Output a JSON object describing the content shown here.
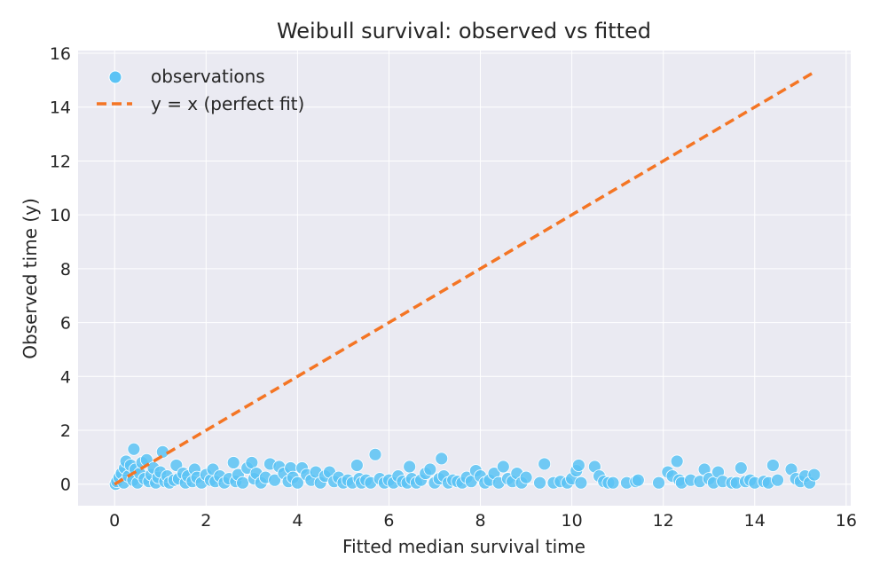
{
  "chart_data": {
    "type": "scatter",
    "title": "Weibull survival: observed vs fitted",
    "xlabel": "Fitted median survival time",
    "ylabel": "Observed time (y)",
    "xlim": [
      -0.8,
      16.1
    ],
    "ylim": [
      -0.8,
      16.1
    ],
    "xticks": [
      0,
      2,
      4,
      6,
      8,
      10,
      12,
      14,
      16
    ],
    "yticks": [
      0,
      2,
      4,
      6,
      8,
      10,
      12,
      14,
      16
    ],
    "grid": true,
    "legend_position": "top-left",
    "colors": {
      "points": "#5bc3f5",
      "line": "#f47524",
      "background": "#eaeaf2"
    },
    "series": [
      {
        "name": "observations",
        "kind": "scatter",
        "points": [
          [
            0.02,
            0.0
          ],
          [
            0.05,
            0.1
          ],
          [
            0.1,
            0.25
          ],
          [
            0.15,
            0.4
          ],
          [
            0.2,
            0.05
          ],
          [
            0.22,
            0.6
          ],
          [
            0.25,
            0.85
          ],
          [
            0.3,
            0.3
          ],
          [
            0.35,
            0.7
          ],
          [
            0.4,
            0.15
          ],
          [
            0.42,
            1.3
          ],
          [
            0.45,
            0.55
          ],
          [
            0.5,
            0.05
          ],
          [
            0.55,
            0.4
          ],
          [
            0.6,
            0.8
          ],
          [
            0.65,
            0.2
          ],
          [
            0.7,
            0.9
          ],
          [
            0.75,
            0.1
          ],
          [
            0.8,
            0.35
          ],
          [
            0.85,
            0.6
          ],
          [
            0.9,
            0.05
          ],
          [
            0.95,
            0.25
          ],
          [
            1.0,
            0.45
          ],
          [
            1.05,
            1.2
          ],
          [
            1.1,
            0.1
          ],
          [
            1.15,
            0.3
          ],
          [
            1.2,
            0.05
          ],
          [
            1.3,
            0.15
          ],
          [
            1.35,
            0.7
          ],
          [
            1.4,
            0.2
          ],
          [
            1.5,
            0.4
          ],
          [
            1.55,
            0.05
          ],
          [
            1.6,
            0.3
          ],
          [
            1.7,
            0.1
          ],
          [
            1.75,
            0.55
          ],
          [
            1.8,
            0.25
          ],
          [
            1.9,
            0.05
          ],
          [
            2.0,
            0.35
          ],
          [
            2.1,
            0.15
          ],
          [
            2.15,
            0.55
          ],
          [
            2.2,
            0.1
          ],
          [
            2.3,
            0.3
          ],
          [
            2.4,
            0.05
          ],
          [
            2.5,
            0.2
          ],
          [
            2.6,
            0.8
          ],
          [
            2.65,
            0.1
          ],
          [
            2.7,
            0.35
          ],
          [
            2.8,
            0.05
          ],
          [
            2.9,
            0.6
          ],
          [
            3.0,
            0.8
          ],
          [
            3.05,
            0.2
          ],
          [
            3.1,
            0.4
          ],
          [
            3.2,
            0.05
          ],
          [
            3.3,
            0.25
          ],
          [
            3.4,
            0.75
          ],
          [
            3.5,
            0.15
          ],
          [
            3.6,
            0.65
          ],
          [
            3.7,
            0.4
          ],
          [
            3.8,
            0.1
          ],
          [
            3.85,
            0.6
          ],
          [
            3.9,
            0.25
          ],
          [
            4.0,
            0.05
          ],
          [
            4.1,
            0.6
          ],
          [
            4.2,
            0.35
          ],
          [
            4.3,
            0.15
          ],
          [
            4.4,
            0.45
          ],
          [
            4.5,
            0.05
          ],
          [
            4.6,
            0.3
          ],
          [
            4.7,
            0.45
          ],
          [
            4.8,
            0.1
          ],
          [
            4.9,
            0.25
          ],
          [
            5.0,
            0.05
          ],
          [
            5.1,
            0.15
          ],
          [
            5.2,
            0.05
          ],
          [
            5.3,
            0.7
          ],
          [
            5.35,
            0.2
          ],
          [
            5.4,
            0.05
          ],
          [
            5.5,
            0.15
          ],
          [
            5.6,
            0.05
          ],
          [
            5.7,
            1.1
          ],
          [
            5.8,
            0.2
          ],
          [
            5.9,
            0.05
          ],
          [
            6.0,
            0.15
          ],
          [
            6.1,
            0.05
          ],
          [
            6.2,
            0.3
          ],
          [
            6.3,
            0.1
          ],
          [
            6.4,
            0.05
          ],
          [
            6.45,
            0.65
          ],
          [
            6.5,
            0.2
          ],
          [
            6.6,
            0.05
          ],
          [
            6.7,
            0.15
          ],
          [
            6.8,
            0.4
          ],
          [
            6.9,
            0.55
          ],
          [
            7.0,
            0.05
          ],
          [
            7.1,
            0.2
          ],
          [
            7.15,
            0.95
          ],
          [
            7.2,
            0.3
          ],
          [
            7.3,
            0.05
          ],
          [
            7.4,
            0.15
          ],
          [
            7.5,
            0.1
          ],
          [
            7.6,
            0.05
          ],
          [
            7.7,
            0.25
          ],
          [
            7.8,
            0.1
          ],
          [
            7.9,
            0.5
          ],
          [
            8.0,
            0.3
          ],
          [
            8.1,
            0.05
          ],
          [
            8.2,
            0.15
          ],
          [
            8.3,
            0.4
          ],
          [
            8.4,
            0.05
          ],
          [
            8.5,
            0.65
          ],
          [
            8.6,
            0.2
          ],
          [
            8.7,
            0.1
          ],
          [
            8.8,
            0.4
          ],
          [
            8.9,
            0.05
          ],
          [
            9.0,
            0.25
          ],
          [
            9.3,
            0.05
          ],
          [
            9.4,
            0.75
          ],
          [
            9.6,
            0.05
          ],
          [
            9.75,
            0.1
          ],
          [
            9.9,
            0.05
          ],
          [
            10.0,
            0.2
          ],
          [
            10.1,
            0.5
          ],
          [
            10.15,
            0.7
          ],
          [
            10.2,
            0.05
          ],
          [
            10.5,
            0.65
          ],
          [
            10.6,
            0.3
          ],
          [
            10.7,
            0.1
          ],
          [
            10.8,
            0.05
          ],
          [
            10.9,
            0.05
          ],
          [
            11.2,
            0.05
          ],
          [
            11.4,
            0.1
          ],
          [
            11.45,
            0.15
          ],
          [
            11.9,
            0.05
          ],
          [
            12.1,
            0.45
          ],
          [
            12.2,
            0.3
          ],
          [
            12.3,
            0.85
          ],
          [
            12.35,
            0.15
          ],
          [
            12.4,
            0.05
          ],
          [
            12.6,
            0.15
          ],
          [
            12.8,
            0.1
          ],
          [
            12.9,
            0.55
          ],
          [
            13.0,
            0.2
          ],
          [
            13.1,
            0.05
          ],
          [
            13.2,
            0.45
          ],
          [
            13.3,
            0.1
          ],
          [
            13.5,
            0.05
          ],
          [
            13.6,
            0.05
          ],
          [
            13.7,
            0.6
          ],
          [
            13.8,
            0.1
          ],
          [
            13.9,
            0.15
          ],
          [
            14.0,
            0.05
          ],
          [
            14.2,
            0.1
          ],
          [
            14.3,
            0.05
          ],
          [
            14.4,
            0.7
          ],
          [
            14.5,
            0.15
          ],
          [
            14.8,
            0.55
          ],
          [
            14.9,
            0.2
          ],
          [
            15.0,
            0.1
          ],
          [
            15.1,
            0.3
          ],
          [
            15.2,
            0.05
          ],
          [
            15.3,
            0.35
          ]
        ]
      },
      {
        "name": "y = x (perfect fit)",
        "kind": "line",
        "points": [
          [
            0.0,
            0.0
          ],
          [
            15.3,
            15.3
          ]
        ]
      }
    ]
  }
}
